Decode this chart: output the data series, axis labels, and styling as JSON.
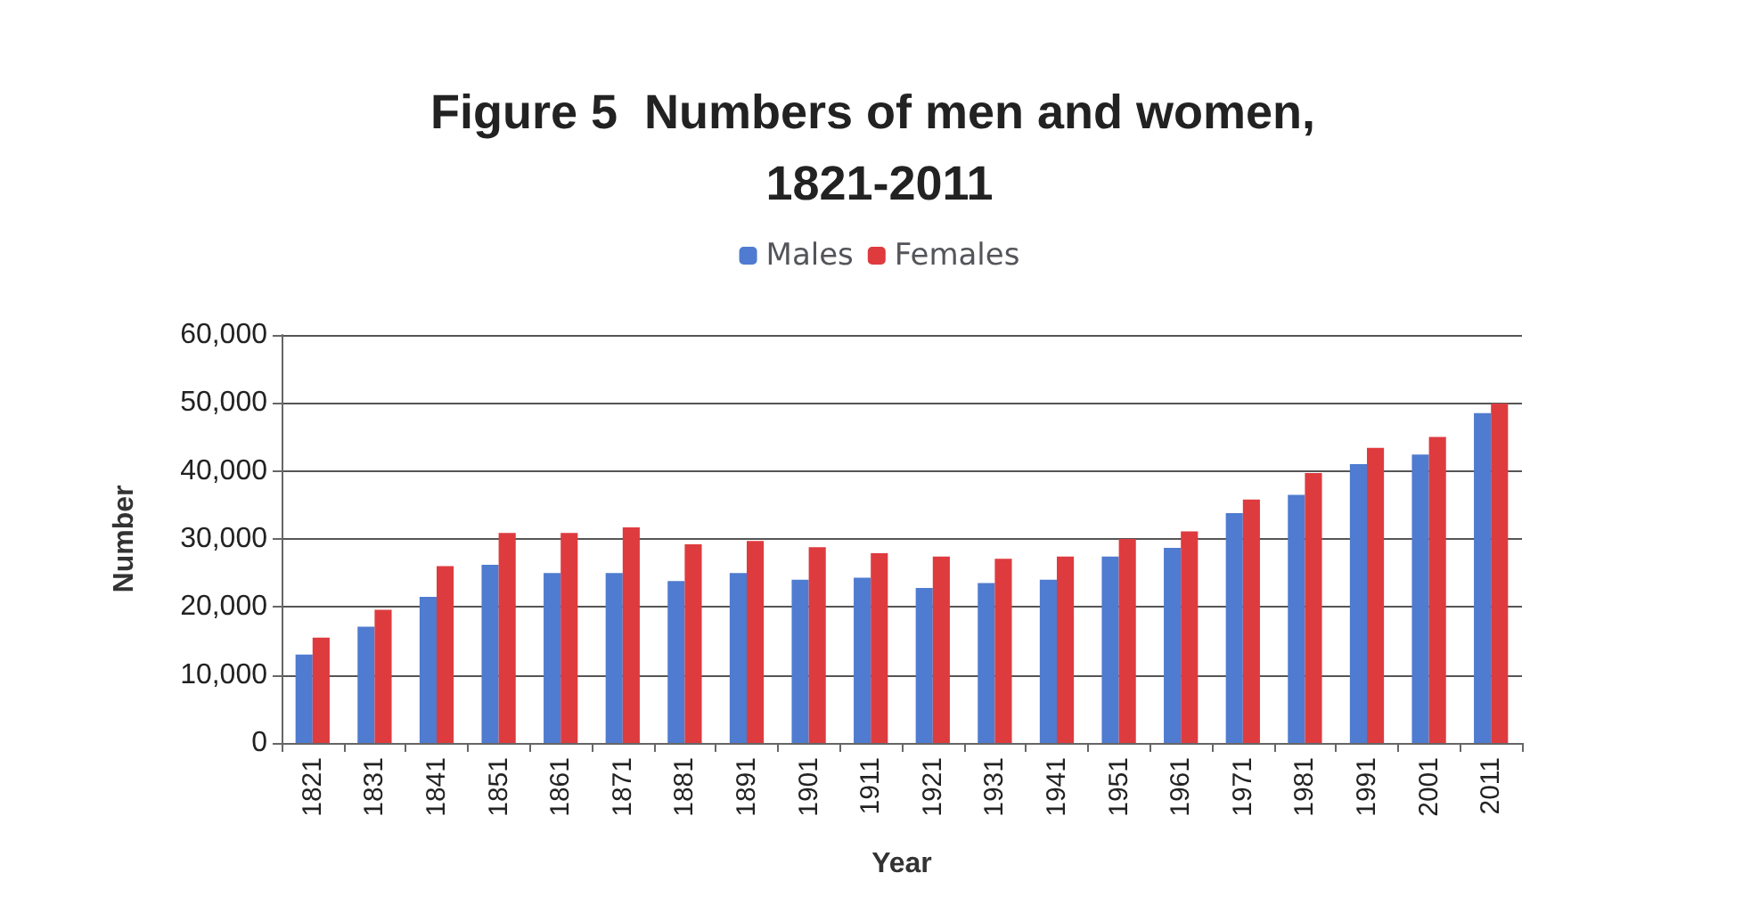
{
  "chart_data": {
    "type": "bar",
    "title": "Figure 5  Numbers of men and women, 1821-2011",
    "xlabel": "Year",
    "ylabel": "Number",
    "categories": [
      "1821",
      "1831",
      "1841",
      "1851",
      "1861",
      "1871",
      "1881",
      "1891",
      "1901",
      "1911",
      "1921",
      "1931",
      "1941",
      "1951",
      "1961",
      "1971",
      "1981",
      "1991",
      "2001",
      "2011"
    ],
    "series": [
      {
        "name": "Males",
        "color": "#4f7bd0",
        "values": [
          13000,
          17100,
          21500,
          26200,
          25000,
          25000,
          23800,
          25000,
          24000,
          24300,
          22800,
          23500,
          24000,
          27400,
          28700,
          33800,
          36500,
          41000,
          42400,
          48500
        ]
      },
      {
        "name": "Females",
        "color": "#de3b3f",
        "values": [
          15500,
          19600,
          26000,
          30900,
          30900,
          31700,
          29200,
          29700,
          28800,
          27900,
          27400,
          27100,
          27400,
          30000,
          31100,
          35800,
          39700,
          43400,
          45000,
          49900
        ]
      }
    ],
    "ylim": [
      0,
      60000
    ],
    "yticks": [
      0,
      {
        "value": 10000,
        "label": "10,000"
      },
      {
        "value": 20000,
        "label": "20,000"
      },
      {
        "value": 30000,
        "label": "30,000"
      },
      {
        "value": 40000,
        "label": "40,000"
      },
      {
        "value": 50000,
        "label": "50,000"
      },
      {
        "value": 60000,
        "label": "60,000"
      }
    ],
    "grid": "y",
    "legend": "top"
  }
}
